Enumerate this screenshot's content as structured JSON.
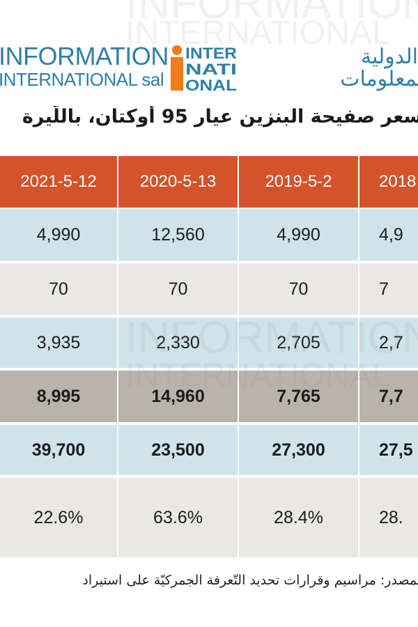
{
  "header": {
    "brand_en_line1": "INFORMATION",
    "brand_en_line2": "INTERNATIONAL sal",
    "logo_letters": [
      "INTER",
      "NATI",
      "ONAL"
    ],
    "brand_ar_line1": "الدولية",
    "brand_ar_line2": "للمعلومات"
  },
  "title": "سعر صفيحة البنزين عيار 95 أوكتان، باللّيرة",
  "table": {
    "headers": [
      "2021-5-12",
      "2020-5-13",
      "2019-5-2",
      "2018"
    ],
    "rows": [
      {
        "style": "light-blue",
        "bold": false,
        "cells": [
          "4,990",
          "12,560",
          "4,990",
          "4,9"
        ]
      },
      {
        "style": "light-gray",
        "bold": false,
        "cells": [
          "70",
          "70",
          "70",
          "7"
        ]
      },
      {
        "style": "light-blue",
        "bold": false,
        "cells": [
          "3,935",
          "2,330",
          "2,705",
          "2,7"
        ]
      },
      {
        "style": "dark-gray",
        "bold": true,
        "cells": [
          "8,995",
          "14,960",
          "7,765",
          "7,7"
        ]
      },
      {
        "style": "light-blue",
        "bold": true,
        "cells": [
          "39,700",
          "23,500",
          "27,300",
          "27,5"
        ]
      },
      {
        "style": "light-gray",
        "bold": false,
        "cells": [
          "22.6%",
          "63.6%",
          "28.4%",
          "28."
        ]
      }
    ]
  },
  "footer": "المصدر: مراسيم وقرارات تحديد التّعرفة الجمركيّة على استيراد",
  "colors": {
    "header_bg": "#d4532a",
    "header_text": "#ffffff",
    "light_blue": "#cfe3ea",
    "light_gray": "#e9e8e5",
    "dark_gray": "#b8b4ab",
    "brand_blue": "#2e7fa6",
    "brand_orange": "#ef7d1a"
  },
  "watermark": [
    "INFORMATION",
    "INTERNATIONAL"
  ]
}
